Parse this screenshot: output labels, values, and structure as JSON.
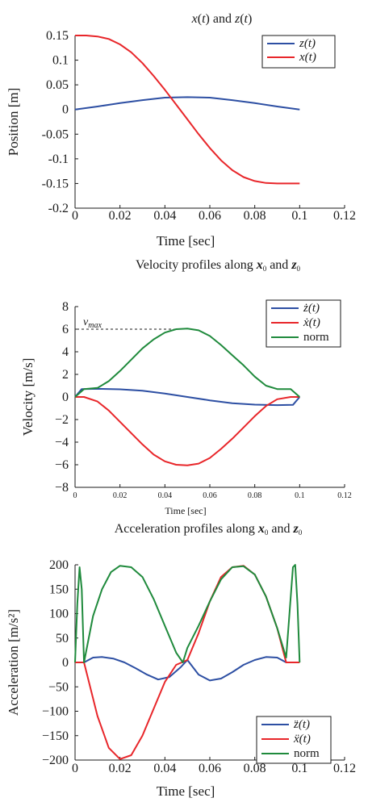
{
  "colors": {
    "z": "#2d4fa3",
    "x": "#e8262a",
    "norm": "#1f8a3c",
    "axis": "#1a1a1a"
  },
  "chart_data": [
    {
      "type": "line",
      "title": "x(t) and  z(t)",
      "xlabel": "Time [sec]",
      "ylabel": "Position [m]",
      "xlim": [
        0,
        0.12
      ],
      "ylim": [
        -0.2,
        0.15
      ],
      "xticks": [
        "0",
        "0.02",
        "0.04",
        "0.06",
        "0.08",
        "0.1",
        "0.12"
      ],
      "yticks": [
        "0.15",
        "0.1",
        "0.05",
        "0",
        "-0.05",
        "-0.1",
        "-0.15",
        "-0.2"
      ],
      "legend_position": "top-right",
      "legend": [
        "z(t)",
        "x(t)"
      ],
      "series": [
        {
          "name": "z(t)",
          "color_key": "z",
          "x": [
            0,
            0.01,
            0.02,
            0.03,
            0.04,
            0.05,
            0.06,
            0.07,
            0.08,
            0.09,
            0.1
          ],
          "y": [
            0,
            0.006,
            0.013,
            0.019,
            0.024,
            0.025,
            0.024,
            0.019,
            0.013,
            0.006,
            0
          ]
        },
        {
          "name": "x(t)",
          "color_key": "x",
          "x": [
            0,
            0.005,
            0.01,
            0.015,
            0.02,
            0.025,
            0.03,
            0.035,
            0.04,
            0.045,
            0.05,
            0.055,
            0.06,
            0.065,
            0.07,
            0.075,
            0.08,
            0.085,
            0.09,
            0.095,
            0.1
          ],
          "y": [
            0.15,
            0.15,
            0.148,
            0.143,
            0.132,
            0.116,
            0.094,
            0.068,
            0.04,
            0.01,
            -0.02,
            -0.05,
            -0.078,
            -0.103,
            -0.123,
            -0.137,
            -0.145,
            -0.149,
            -0.15,
            -0.15,
            -0.15
          ]
        }
      ]
    },
    {
      "type": "line",
      "title": "Velocity profiles along x0 and z0",
      "xlabel": "Time [sec]",
      "ylabel": "Velocity  [m/s]",
      "xlim": [
        0,
        0.12
      ],
      "ylim": [
        -8,
        8
      ],
      "xticks": [
        "0",
        "0.02",
        "0.04",
        "0.06",
        "0.08",
        "0.1",
        "0.12"
      ],
      "yticks": [
        "8",
        "6",
        "4",
        "2",
        "0",
        "−2",
        "−4",
        "−6",
        "−8"
      ],
      "legend_position": "top-right",
      "legend": [
        "ż(t)",
        "ẋ(t)",
        "norm"
      ],
      "annotation": {
        "text": "v_max",
        "y": 6
      },
      "series": [
        {
          "name": "ż(t)",
          "color_key": "z",
          "x": [
            0,
            0.003,
            0.01,
            0.02,
            0.03,
            0.04,
            0.05,
            0.06,
            0.07,
            0.08,
            0.09,
            0.097,
            0.1
          ],
          "y": [
            0,
            0.7,
            0.72,
            0.68,
            0.55,
            0.3,
            0,
            -0.3,
            -0.55,
            -0.68,
            -0.72,
            -0.7,
            0
          ]
        },
        {
          "name": "ẋ(t)",
          "color_key": "x",
          "x": [
            0,
            0.004,
            0.01,
            0.015,
            0.02,
            0.025,
            0.03,
            0.035,
            0.04,
            0.045,
            0.05,
            0.055,
            0.06,
            0.065,
            0.07,
            0.075,
            0.08,
            0.085,
            0.09,
            0.096,
            0.1
          ],
          "y": [
            0,
            0,
            -0.4,
            -1.2,
            -2.2,
            -3.2,
            -4.2,
            -5.1,
            -5.7,
            -6,
            -6.05,
            -5.9,
            -5.4,
            -4.6,
            -3.7,
            -2.7,
            -1.7,
            -0.8,
            -0.2,
            0,
            0
          ]
        },
        {
          "name": "norm",
          "color_key": "norm",
          "x": [
            0,
            0.004,
            0.01,
            0.015,
            0.02,
            0.025,
            0.03,
            0.035,
            0.04,
            0.045,
            0.05,
            0.055,
            0.06,
            0.065,
            0.07,
            0.075,
            0.08,
            0.085,
            0.09,
            0.096,
            0.1
          ],
          "y": [
            0,
            0.7,
            0.8,
            1.4,
            2.3,
            3.3,
            4.3,
            5.1,
            5.7,
            6,
            6.05,
            5.9,
            5.4,
            4.6,
            3.7,
            2.8,
            1.8,
            1.0,
            0.7,
            0.7,
            0
          ]
        }
      ]
    },
    {
      "type": "line",
      "title": "Acceleration profiles along x0 and z0",
      "xlabel": "Time [sec]",
      "ylabel": "Acceleration  [m/s²]",
      "xlim": [
        0,
        0.12
      ],
      "ylim": [
        -200,
        200
      ],
      "xticks": [
        "0",
        "0.02",
        "0.04",
        "0.06",
        "0.08",
        "0.1",
        "0.12"
      ],
      "yticks": [
        "200",
        "150",
        "100",
        "50",
        "0",
        "−50",
        "−100",
        "−150",
        "−200"
      ],
      "legend_position": "bottom-right",
      "legend": [
        "z̈(t)",
        "ẍ(t)",
        "norm"
      ],
      "series": [
        {
          "name": "z̈(t)",
          "color_key": "z",
          "x": [
            0.004,
            0.008,
            0.012,
            0.017,
            0.022,
            0.027,
            0.032,
            0.037,
            0.042,
            0.047,
            0.05,
            0.055,
            0.06,
            0.065,
            0.07,
            0.075,
            0.08,
            0.085,
            0.09,
            0.094
          ],
          "y": [
            0,
            10,
            11,
            8,
            0,
            -12,
            -25,
            -35,
            -30,
            -10,
            5,
            -25,
            -37,
            -33,
            -20,
            -5,
            5,
            11,
            10,
            0
          ]
        },
        {
          "name": "ẍ(t)",
          "color_key": "x",
          "x": [
            0,
            0.004,
            0.01,
            0.015,
            0.02,
            0.025,
            0.03,
            0.035,
            0.04,
            0.045,
            0.05,
            0.055,
            0.06,
            0.065,
            0.07,
            0.075,
            0.08,
            0.085,
            0.09,
            0.094,
            0.1
          ],
          "y": [
            0,
            0,
            -110,
            -175,
            -198,
            -190,
            -150,
            -95,
            -40,
            -5,
            5,
            60,
            125,
            175,
            195,
            198,
            180,
            135,
            70,
            0,
            0
          ]
        },
        {
          "name": "norm",
          "color_key": "norm",
          "x": [
            0,
            0.001,
            0.002,
            0.003,
            0.004,
            0.008,
            0.012,
            0.016,
            0.02,
            0.025,
            0.03,
            0.035,
            0.04,
            0.045,
            0.048,
            0.05,
            0.055,
            0.06,
            0.065,
            0.07,
            0.075,
            0.08,
            0.085,
            0.09,
            0.094,
            0.097,
            0.098,
            0.099,
            0.1
          ],
          "y": [
            0,
            120,
            195,
            150,
            0,
            95,
            150,
            185,
            198,
            195,
            175,
            130,
            75,
            20,
            0,
            30,
            75,
            125,
            170,
            195,
            197,
            180,
            135,
            70,
            10,
            195,
            200,
            120,
            0
          ]
        }
      ]
    }
  ]
}
